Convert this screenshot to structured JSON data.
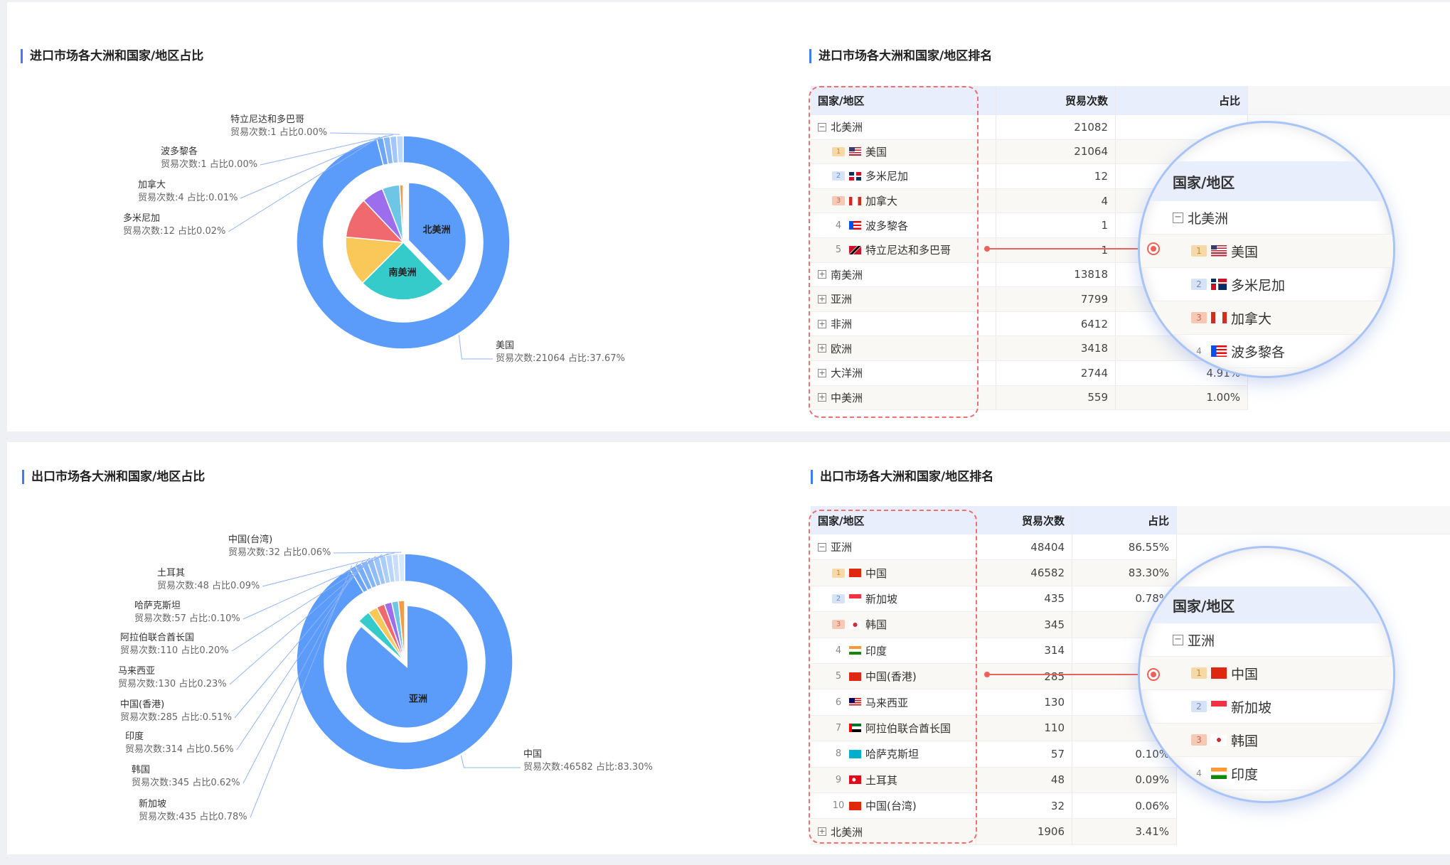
{
  "import": {
    "pie_title": "进口市场各大洲和国家/地区占比",
    "table_title": "进口市场各大洲和国家/地区排名",
    "columns": [
      "国家/地区",
      "贸易次数",
      "占比"
    ],
    "rows": [
      {
        "type": "group",
        "toggle": "−",
        "name": "北美洲",
        "count": "21082",
        "ratio": ""
      },
      {
        "type": "item",
        "rank": "1",
        "flag": "us",
        "name": "美国",
        "count": "21064",
        "ratio": ""
      },
      {
        "type": "item",
        "rank": "2",
        "flag": "do",
        "name": "多米尼加",
        "count": "12",
        "ratio": ""
      },
      {
        "type": "item",
        "rank": "3",
        "flag": "ca",
        "name": "加拿大",
        "count": "4",
        "ratio": ""
      },
      {
        "type": "item",
        "rank": "4",
        "flag": "pr",
        "name": "波多黎各",
        "count": "1",
        "ratio": ""
      },
      {
        "type": "item",
        "rank": "5",
        "flag": "tt",
        "name": "特立尼达和多巴哥",
        "count": "1",
        "ratio": ""
      },
      {
        "type": "group",
        "toggle": "+",
        "name": "南美洲",
        "count": "13818",
        "ratio": ""
      },
      {
        "type": "group",
        "toggle": "+",
        "name": "亚洲",
        "count": "7799",
        "ratio": ""
      },
      {
        "type": "group",
        "toggle": "+",
        "name": "非洲",
        "count": "6412",
        "ratio": ""
      },
      {
        "type": "group",
        "toggle": "+",
        "name": "欧洲",
        "count": "3418",
        "ratio": ""
      },
      {
        "type": "group",
        "toggle": "+",
        "name": "大洋洲",
        "count": "2744",
        "ratio": "4.91%"
      },
      {
        "type": "group",
        "toggle": "+",
        "name": "中美洲",
        "count": "559",
        "ratio": "1.00%"
      }
    ],
    "magnifier": {
      "header": "国家/地区",
      "rows": [
        {
          "type": "group",
          "toggle": "−",
          "name": "北美洲"
        },
        {
          "type": "item",
          "rank": "1",
          "flag": "us",
          "name": "美国"
        },
        {
          "type": "item",
          "rank": "2",
          "flag": "do",
          "name": "多米尼加"
        },
        {
          "type": "item",
          "rank": "3",
          "flag": "ca",
          "name": "加拿大"
        },
        {
          "type": "item",
          "rank": "4",
          "flag": "pr",
          "name": "波多黎各"
        }
      ]
    }
  },
  "export": {
    "pie_title": "出口市场各大洲和国家/地区占比",
    "table_title": "出口市场各大洲和国家/地区排名",
    "columns": [
      "国家/地区",
      "贸易次数",
      "占比"
    ],
    "rows": [
      {
        "type": "group",
        "toggle": "−",
        "name": "亚洲",
        "count": "48404",
        "ratio": "86.55%"
      },
      {
        "type": "item",
        "rank": "1",
        "flag": "cn",
        "name": "中国",
        "count": "46582",
        "ratio": "83.30%"
      },
      {
        "type": "item",
        "rank": "2",
        "flag": "sg",
        "name": "新加坡",
        "count": "435",
        "ratio": "0.78%"
      },
      {
        "type": "item",
        "rank": "3",
        "flag": "kr",
        "name": "韩国",
        "count": "345",
        "ratio": ""
      },
      {
        "type": "item",
        "rank": "4",
        "flag": "in",
        "name": "印度",
        "count": "314",
        "ratio": ""
      },
      {
        "type": "item",
        "rank": "5",
        "flag": "hk",
        "name": "中国(香港)",
        "count": "285",
        "ratio": ""
      },
      {
        "type": "item",
        "rank": "6",
        "flag": "my",
        "name": "马来西亚",
        "count": "130",
        "ratio": ""
      },
      {
        "type": "item",
        "rank": "7",
        "flag": "ae",
        "name": "阿拉伯联合酋长国",
        "count": "110",
        "ratio": ""
      },
      {
        "type": "item",
        "rank": "8",
        "flag": "kz",
        "name": "哈萨克斯坦",
        "count": "57",
        "ratio": "0.10%"
      },
      {
        "type": "item",
        "rank": "9",
        "flag": "tr",
        "name": "土耳其",
        "count": "48",
        "ratio": "0.09%"
      },
      {
        "type": "item",
        "rank": "10",
        "flag": "cn",
        "name": "中国(台湾)",
        "count": "32",
        "ratio": "0.06%"
      },
      {
        "type": "group",
        "toggle": "+",
        "name": "北美洲",
        "count": "1906",
        "ratio": "3.41%"
      }
    ],
    "magnifier": {
      "header": "国家/地区",
      "rows": [
        {
          "type": "group",
          "toggle": "−",
          "name": "亚洲"
        },
        {
          "type": "item",
          "rank": "1",
          "flag": "cn",
          "name": "中国"
        },
        {
          "type": "item",
          "rank": "2",
          "flag": "sg",
          "name": "新加坡"
        },
        {
          "type": "item",
          "rank": "3",
          "flag": "kr",
          "name": "韩国"
        },
        {
          "type": "item",
          "rank": "4",
          "flag": "in",
          "name": "印度"
        }
      ]
    }
  },
  "chart_data": [
    {
      "type": "pie",
      "title": "进口市场各大洲和国家/地区占比",
      "inner": {
        "categories": [
          "北美洲",
          "南美洲",
          "亚洲",
          "非洲",
          "欧洲",
          "大洋洲",
          "中美洲"
        ],
        "values": [
          21082,
          13818,
          7799,
          6412,
          3418,
          2744,
          559
        ],
        "shown_labels": [
          "北美洲",
          "南美洲"
        ],
        "colors": [
          "#5b9bfa",
          "#36cbcb",
          "#fac858",
          "#f0696e",
          "#9c6ded",
          "#6ec6e6",
          "#f39c45"
        ]
      },
      "outer": {
        "categories": [
          "美国",
          "多米尼加",
          "加拿大",
          "波多黎各",
          "特立尼达和多巴哥"
        ],
        "values": [
          21064,
          12,
          4,
          1,
          1
        ],
        "labels": [
          {
            "name": "美国",
            "detail": "贸易次数:21064 占比:37.67%"
          },
          {
            "name": "多米尼加",
            "detail": "贸易次数:12 占比0.02%"
          },
          {
            "name": "加拿大",
            "detail": "贸易次数:4 占比:0.01%"
          },
          {
            "name": "波多黎各",
            "detail": "贸易次数:1 占比0.00%"
          },
          {
            "name": "特立尼达和多巴哥",
            "detail": "贸易次数:1 占比0.00%"
          }
        ],
        "colors": [
          "#5b9bfa",
          "#6da7fb",
          "#87b6fb",
          "#a3c7fc",
          "#bed8fd"
        ]
      }
    },
    {
      "type": "pie",
      "title": "出口市场各大洲和国家/地区占比",
      "inner": {
        "categories": [
          "亚洲",
          "北美洲",
          "",
          "",
          "",
          "",
          ""
        ],
        "values": [
          48404,
          1906,
          1400,
          1200,
          1100,
          1000,
          916
        ],
        "shown_labels": [
          "亚洲"
        ],
        "colors": [
          "#5b9bfa",
          "#36cbcb",
          "#fac858",
          "#f0696e",
          "#9c6ded",
          "#6ec6e6",
          "#f39c45"
        ]
      },
      "outer": {
        "categories": [
          "中国",
          "新加坡",
          "韩国",
          "印度",
          "中国(香港)",
          "马来西亚",
          "阿拉伯联合酋长国",
          "哈萨克斯坦",
          "土耳其",
          "中国(台湾)"
        ],
        "values": [
          46582,
          435,
          345,
          314,
          285,
          130,
          110,
          57,
          48,
          32
        ],
        "labels": [
          {
            "name": "中国",
            "detail": "贸易次数:46582 占比:83.30%"
          },
          {
            "name": "新加坡",
            "detail": "贸易次数:435 占比0.78%"
          },
          {
            "name": "韩国",
            "detail": "贸易次数:345 占比0.62%"
          },
          {
            "name": "印度",
            "detail": "贸易次数:314 占比0.56%"
          },
          {
            "name": "中国(香港)",
            "detail": "贸易次数:285 占比:0.51%"
          },
          {
            "name": "马来西亚",
            "detail": "贸易次数:130 占比0.23%"
          },
          {
            "name": "阿拉伯联合酋长国",
            "detail": "贸易次数:110 占比0.20%"
          },
          {
            "name": "哈萨克斯坦",
            "detail": "贸易次数:57 占比:0.10%"
          },
          {
            "name": "土耳其",
            "detail": "贸易次数:48 占比0.09%"
          },
          {
            "name": "中国(台湾)",
            "detail": "贸易次数:32 占比0.06%"
          }
        ],
        "colors": [
          "#5b9bfa",
          "#6aa5fb",
          "#76acfb",
          "#83b4fb",
          "#90bcfc",
          "#9dc4fc",
          "#abcdfc",
          "#b9d5fd",
          "#c7defd",
          "#d6e7fe"
        ]
      }
    }
  ]
}
